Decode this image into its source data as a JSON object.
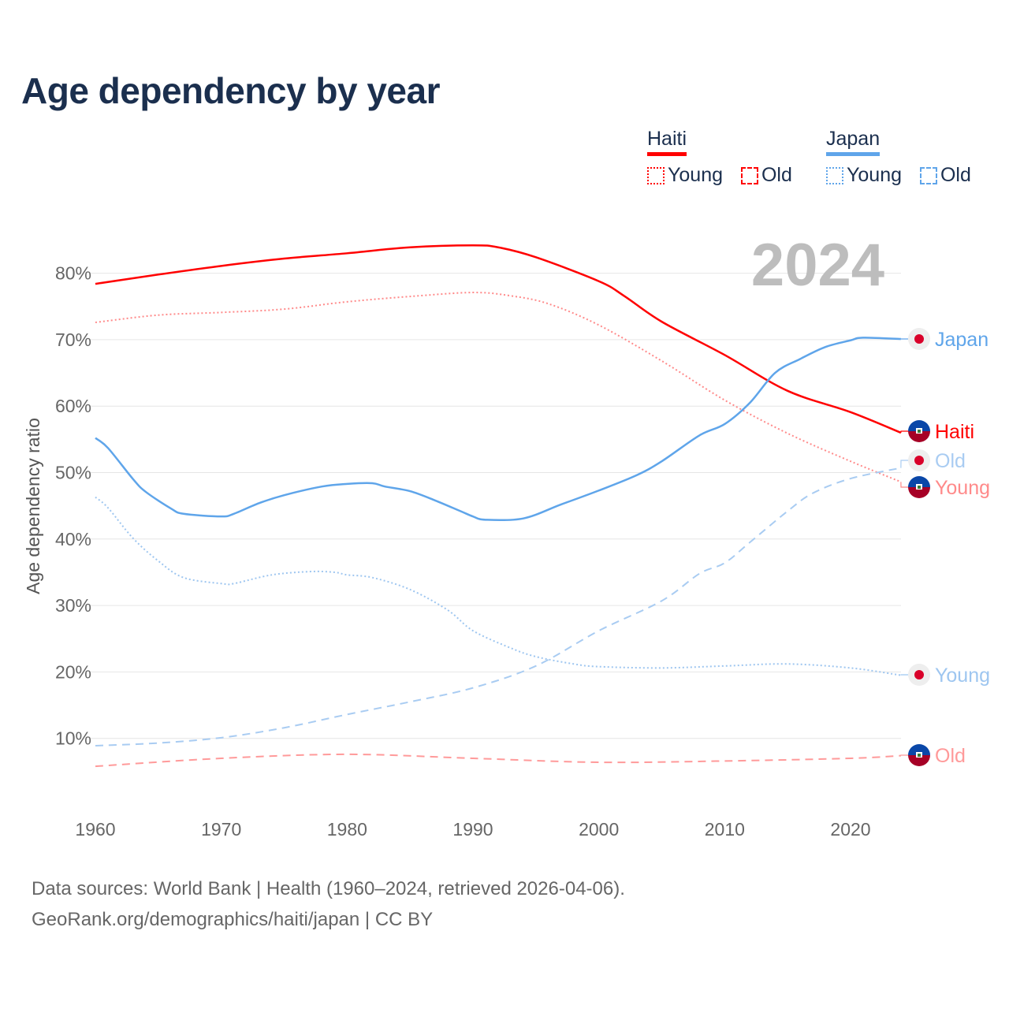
{
  "title": "Age dependency by year",
  "legend": {
    "groups": [
      {
        "name": "Haiti",
        "color": "#ff0000",
        "young": "Young",
        "old": "Old"
      },
      {
        "name": "Japan",
        "color": "#5fa5ea",
        "young": "Young",
        "old": "Old"
      }
    ]
  },
  "year_label": "2024",
  "source": {
    "line1": "Data sources: World Bank | Health (1960–2024, retrieved 2026-04-06).",
    "line2": "GeoRank.org/demographics/haiti/japan | CC BY"
  },
  "chart_data": {
    "type": "line",
    "title": "Age dependency by year",
    "xlabel": "",
    "ylabel": "Age dependency ratio",
    "xlim": [
      1960,
      2024
    ],
    "ylim": [
      0,
      85
    ],
    "x_ticks": [
      1960,
      1970,
      1980,
      1990,
      2000,
      2010,
      2020
    ],
    "x_tick_labels": [
      "1960",
      "1970",
      "1980",
      "1990",
      "2000",
      "2010",
      "2020"
    ],
    "y_ticks": [
      10,
      20,
      30,
      40,
      50,
      60,
      70,
      80
    ],
    "y_tick_labels": [
      "10%",
      "20%",
      "30%",
      "40%",
      "50%",
      "60%",
      "70%",
      "80%"
    ],
    "grid": true,
    "legend_position": "top-right",
    "series": [
      {
        "name": "Haiti",
        "end_label": "Haiti",
        "country": "haiti",
        "color": "#ff0000",
        "style": "solid",
        "x": [
          1960,
          1965,
          1970,
          1975,
          1980,
          1985,
          1990,
          1992,
          1995,
          2000,
          2002,
          2005,
          2010,
          2015,
          2020,
          2024
        ],
        "y": [
          78.4,
          79.8,
          81.1,
          82.2,
          83.0,
          83.9,
          84.2,
          83.9,
          82.4,
          78.8,
          76.6,
          72.7,
          67.7,
          62.3,
          59.1,
          56.0
        ]
      },
      {
        "name": "Haiti Young",
        "end_label": "Young",
        "country": "haiti",
        "color": "#ff8a8a",
        "style": "dotted",
        "x": [
          1960,
          1965,
          1970,
          1975,
          1980,
          1985,
          1990,
          1993,
          1996,
          2000,
          2005,
          2010,
          2015,
          2020,
          2024
        ],
        "y": [
          72.6,
          73.7,
          74.1,
          74.6,
          75.7,
          76.5,
          77.1,
          76.6,
          75.4,
          72.2,
          66.8,
          60.9,
          55.9,
          51.7,
          48.6
        ]
      },
      {
        "name": "Haiti Old",
        "end_label": "Old",
        "country": "haiti",
        "color": "#ff9a9a",
        "style": "dashed",
        "x": [
          1960,
          1970,
          1980,
          1990,
          2000,
          2010,
          2020,
          2024
        ],
        "y": [
          5.8,
          7.0,
          7.6,
          7.0,
          6.4,
          6.6,
          7.0,
          7.4
        ]
      },
      {
        "name": "Japan",
        "end_label": "Japan",
        "country": "japan",
        "color": "#5fa5ea",
        "style": "solid",
        "x": [
          1960,
          1961,
          1963,
          1964,
          1966,
          1967,
          1970,
          1971,
          1973,
          1975,
          1978,
          1980,
          1982,
          1983,
          1985,
          1987,
          1989,
          1990,
          1991,
          1994,
          1997,
          2000,
          2003,
          2005,
          2008,
          2010,
          2012,
          2014,
          2016,
          2018,
          2020,
          2021,
          2024
        ],
        "y": [
          55.2,
          53.7,
          49.0,
          47.1,
          44.6,
          43.8,
          43.4,
          43.8,
          45.4,
          46.6,
          47.9,
          48.3,
          48.4,
          47.9,
          47.2,
          45.8,
          44.2,
          43.4,
          42.9,
          43.1,
          45.2,
          47.3,
          49.6,
          51.7,
          55.6,
          57.3,
          60.5,
          65.0,
          67.1,
          68.9,
          69.9,
          70.3,
          70.1
        ]
      },
      {
        "name": "Japan Young",
        "end_label": "Young",
        "country": "japan",
        "color": "#9ec6f0",
        "style": "dotted",
        "x": [
          1960,
          1961,
          1963,
          1965,
          1967,
          1970,
          1971,
          1974,
          1977,
          1979,
          1980,
          1982,
          1985,
          1988,
          1990,
          1993,
          1995,
          1998,
          2000,
          2005,
          2010,
          2015,
          2020,
          2024
        ],
        "y": [
          46.3,
          44.7,
          40.1,
          36.7,
          34.2,
          33.3,
          33.3,
          34.6,
          35.1,
          35.0,
          34.6,
          34.2,
          32.4,
          29.3,
          26.2,
          23.6,
          22.3,
          21.2,
          20.8,
          20.6,
          20.9,
          21.2,
          20.6,
          19.5
        ]
      },
      {
        "name": "Japan Old",
        "end_label": "Old",
        "country": "japan",
        "color": "#a9ccf2",
        "style": "dashed",
        "x": [
          1960,
          1965,
          1970,
          1975,
          1980,
          1985,
          1990,
          1995,
          2000,
          2005,
          2008,
          2010,
          2012,
          2015,
          2017,
          2020,
          2024
        ],
        "y": [
          8.9,
          9.3,
          10.1,
          11.6,
          13.6,
          15.5,
          17.6,
          20.9,
          26.2,
          30.7,
          34.8,
          36.4,
          39.5,
          44.2,
          46.9,
          49.1,
          50.7
        ]
      }
    ]
  }
}
